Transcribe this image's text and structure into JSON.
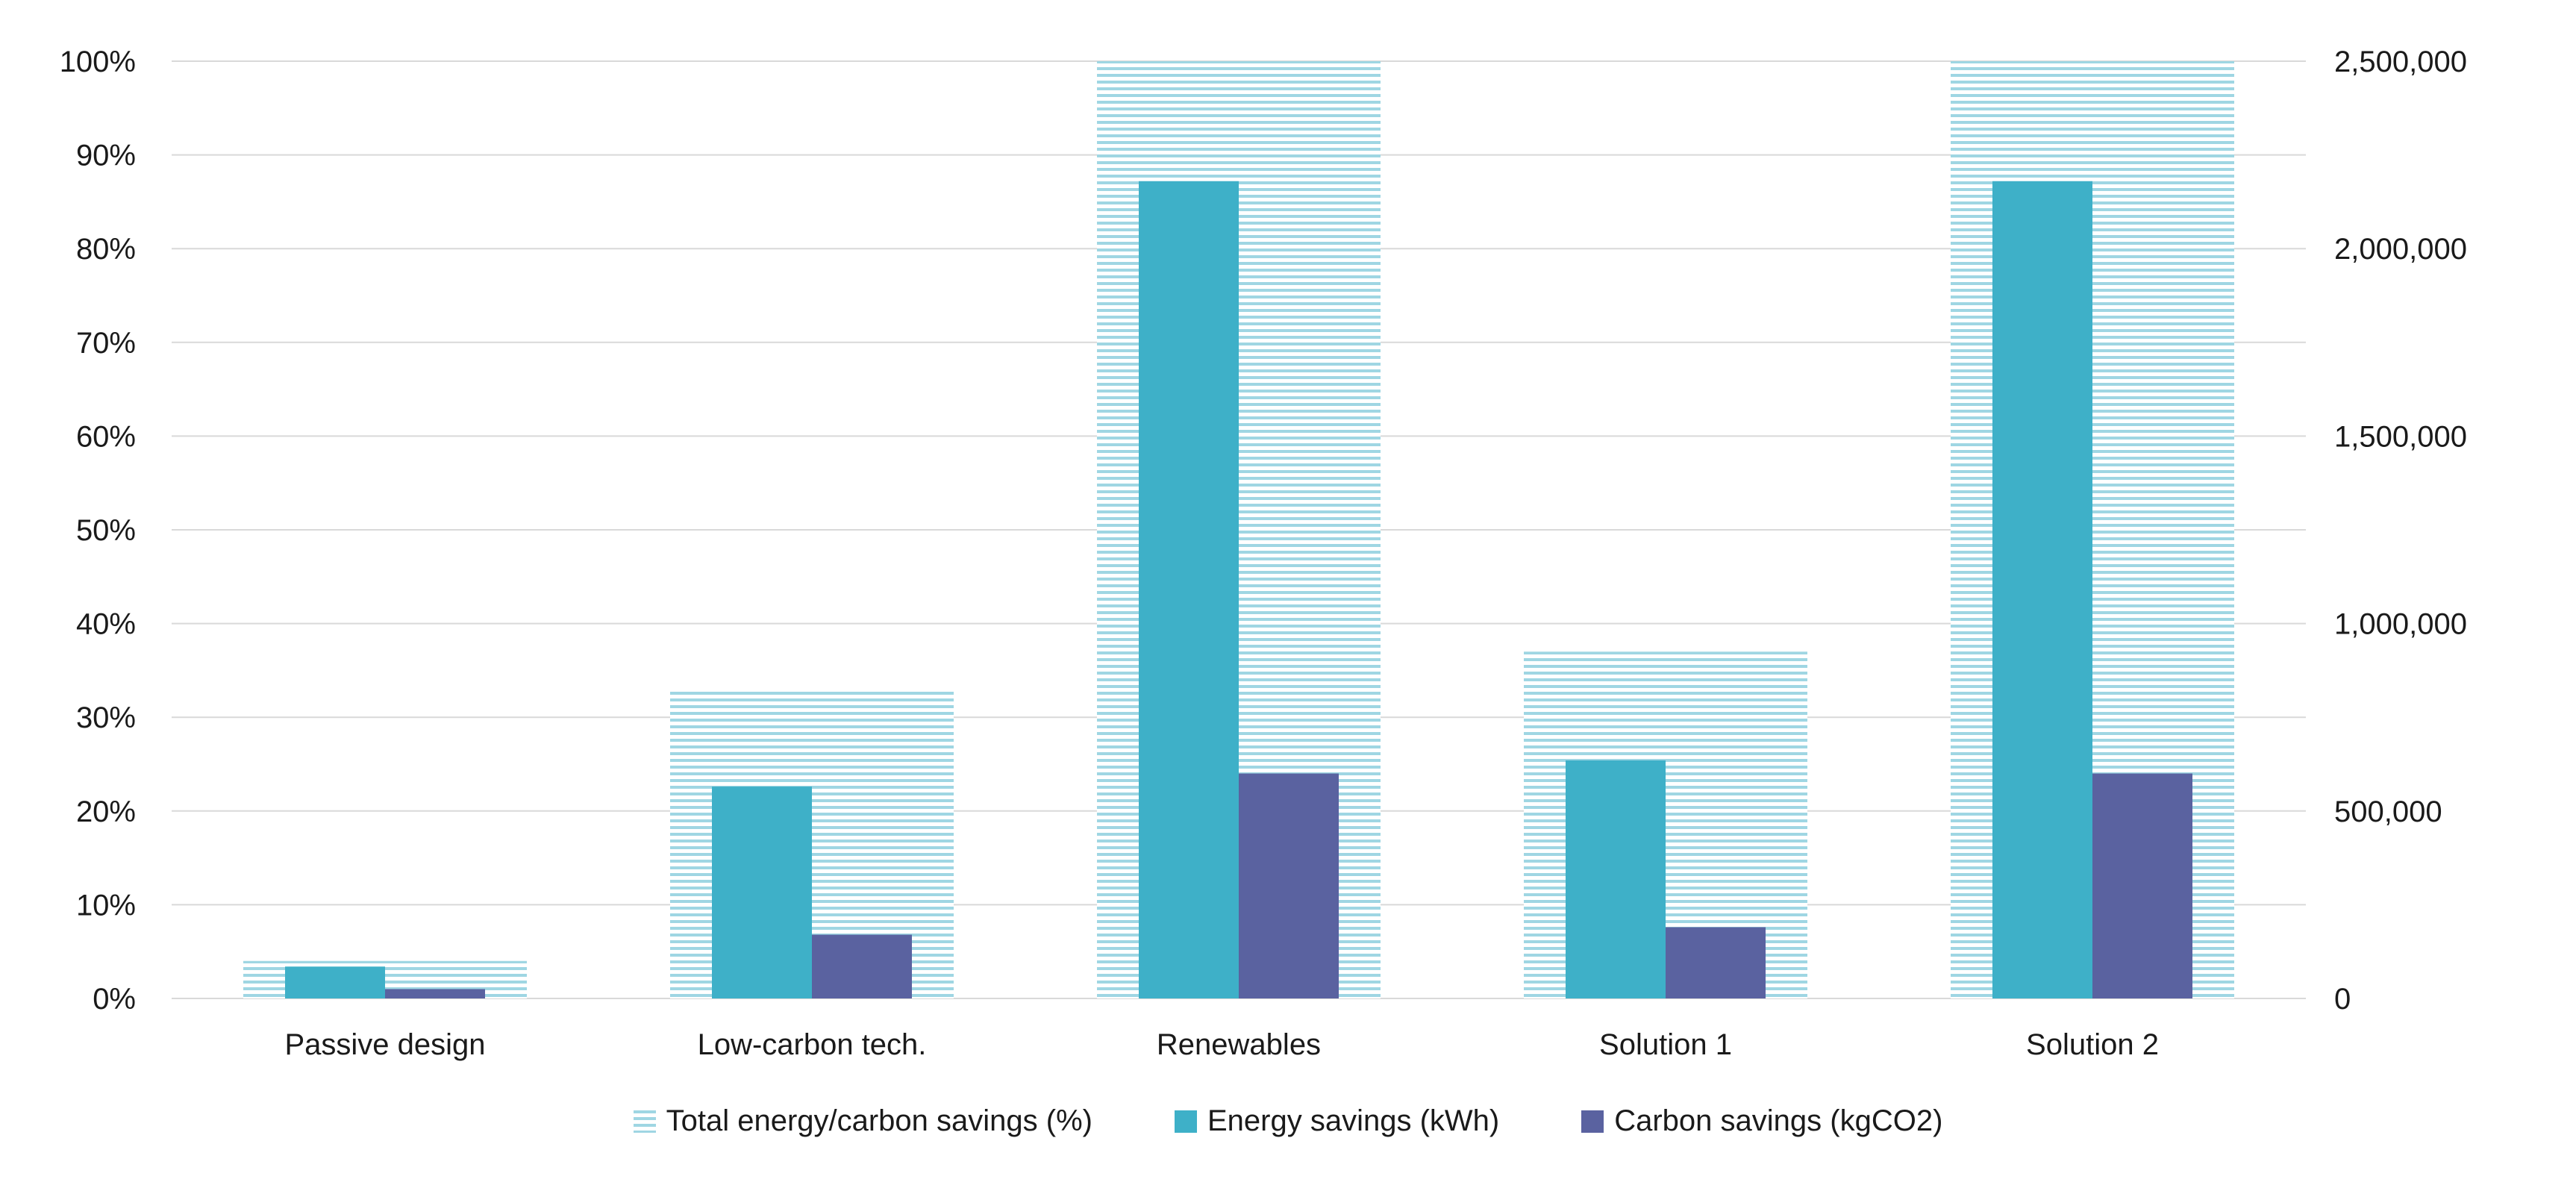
{
  "chart_data": {
    "type": "bar",
    "categories": [
      "Passive design",
      "Low-carbon tech.",
      "Renewables",
      "Solution 1",
      "Solution 2"
    ],
    "series": [
      {
        "name": "Total energy/carbon savings (%)",
        "axis": "left",
        "values": [
          4,
          33,
          100,
          37,
          100
        ],
        "color": "#9fd6e3",
        "pattern": "horizontal-lines"
      },
      {
        "name": "Energy savings (kWh)",
        "axis": "right",
        "values": [
          85000,
          565000,
          2180000,
          635000,
          2180000
        ],
        "color": "#3eb0c8"
      },
      {
        "name": "Carbon savings (kgCO2)",
        "axis": "right",
        "values": [
          25000,
          170000,
          600000,
          190000,
          600000
        ],
        "color": "#5a62a0"
      }
    ],
    "left_axis": {
      "ylim": [
        0,
        100
      ],
      "ticks": [
        "0%",
        "10%",
        "20%",
        "30%",
        "40%",
        "50%",
        "60%",
        "70%",
        "80%",
        "90%",
        "100%"
      ]
    },
    "right_axis": {
      "ylim": [
        0,
        2500000
      ],
      "ticks": [
        "0",
        "500,000",
        "1,000,000",
        "1,500,000",
        "2,000,000",
        "2,500,000"
      ]
    },
    "title": "",
    "xlabel": "",
    "ylabel": "",
    "grid": true,
    "legend_position": "bottom"
  }
}
